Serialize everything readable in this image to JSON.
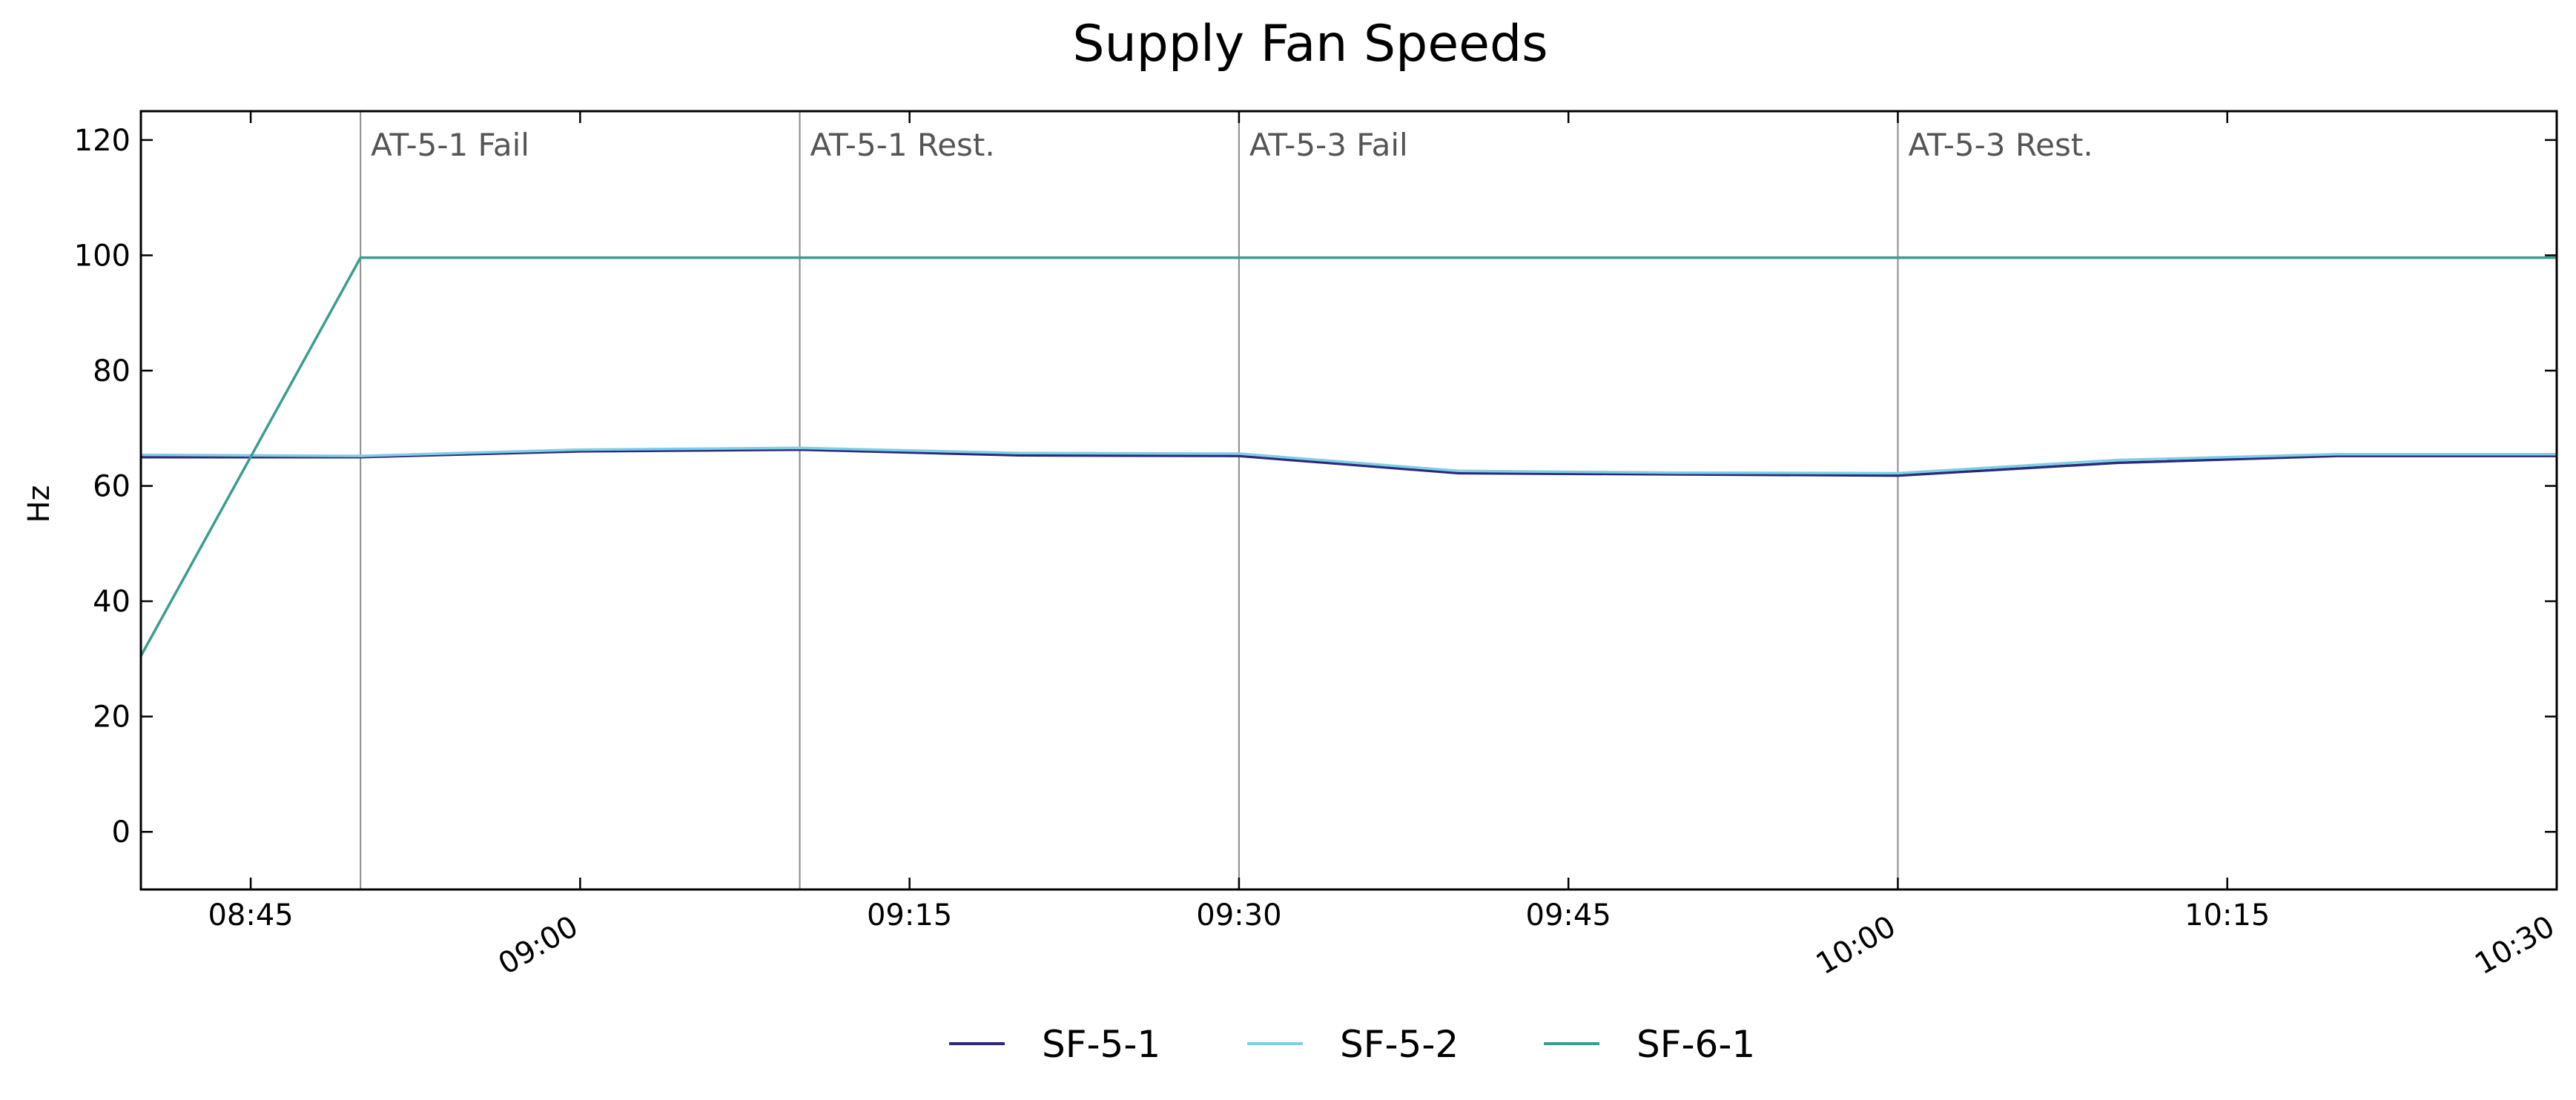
{
  "chart_data": {
    "type": "line",
    "title": "Supply Fan Speeds",
    "xlabel": "",
    "ylabel": "Hz",
    "x_range": [
      "08:40",
      "10:30"
    ],
    "ylim": [
      -10,
      125
    ],
    "y_ticks": [
      0,
      20,
      40,
      60,
      80,
      100,
      120
    ],
    "x_ticks": [
      {
        "time": "08:45",
        "label": "08:45",
        "rotated": false
      },
      {
        "time": "09:00",
        "label": "09:00",
        "rotated": true
      },
      {
        "time": "09:15",
        "label": "09:15",
        "rotated": false
      },
      {
        "time": "09:30",
        "label": "09:30",
        "rotated": false
      },
      {
        "time": "09:45",
        "label": "09:45",
        "rotated": false
      },
      {
        "time": "10:00",
        "label": "10:00",
        "rotated": true
      },
      {
        "time": "10:15",
        "label": "10:15",
        "rotated": false
      },
      {
        "time": "10:30",
        "label": "10:30",
        "rotated": true
      }
    ],
    "grid": false,
    "legend_position": "bottom-center",
    "x": [
      "08:40",
      "08:50",
      "09:00",
      "09:10",
      "09:20",
      "09:30",
      "09:40",
      "09:50",
      "10:00",
      "10:10",
      "10:20",
      "10:30"
    ],
    "series": [
      {
        "name": "SF-5-1",
        "color": "#2b2a7a",
        "values": [
          65.0,
          65.0,
          66.0,
          66.3,
          65.3,
          65.2,
          62.2,
          62.0,
          61.8,
          64.0,
          65.2,
          65.2
        ]
      },
      {
        "name": "SF-5-2",
        "color": "#7fcde8",
        "values": [
          65.4,
          65.2,
          66.3,
          66.6,
          65.7,
          65.6,
          62.6,
          62.3,
          62.2,
          64.5,
          65.5,
          65.5
        ]
      },
      {
        "name": "SF-6-1",
        "color": "#3a9d8f",
        "values": [
          30.5,
          99.6,
          99.6,
          99.6,
          99.6,
          99.6,
          99.6,
          99.6,
          99.6,
          99.6,
          99.6,
          99.6
        ]
      }
    ],
    "annotations": [
      {
        "time": "08:50",
        "label": "AT-5-1 Fail"
      },
      {
        "time": "09:10",
        "label": "AT-5-1 Rest."
      },
      {
        "time": "09:30",
        "label": "AT-5-3 Fail"
      },
      {
        "time": "10:00",
        "label": "AT-5-3 Rest."
      }
    ]
  }
}
